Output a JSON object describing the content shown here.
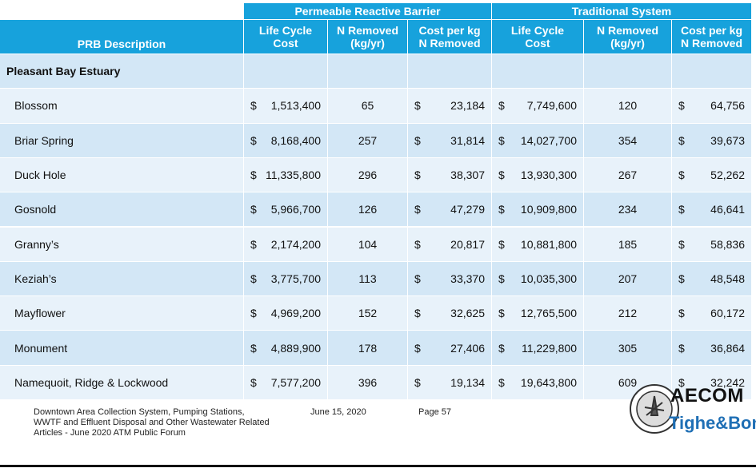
{
  "table": {
    "group_headers": [
      "Permeable Reactive Barrier",
      "Traditional System"
    ],
    "columns": [
      "PRB Description",
      "Life Cycle\nCost",
      "N Removed\n(kg/yr)",
      "Cost per kg\nN Removed",
      "Life Cycle\nCost",
      "N Removed\n(kg/yr)",
      "Cost per kg\nN Removed"
    ],
    "currency": "$",
    "section": "Pleasant Bay Estuary",
    "rows": [
      [
        "Blossom",
        "1,513,400",
        "65",
        "23,184",
        "7,749,600",
        "120",
        "64,756"
      ],
      [
        "Briar Spring",
        "8,168,400",
        "257",
        "31,814",
        "14,027,700",
        "354",
        "39,673"
      ],
      [
        "Duck Hole",
        "11,335,800",
        "296",
        "38,307",
        "13,930,300",
        "267",
        "52,262"
      ],
      [
        "Gosnold",
        "5,966,700",
        "126",
        "47,279",
        "10,909,800",
        "234",
        "46,641"
      ],
      [
        "Granny’s",
        "2,174,200",
        "104",
        "20,817",
        "10,881,800",
        "185",
        "58,836"
      ],
      [
        "Keziah’s",
        "3,775,700",
        "113",
        "33,370",
        "10,035,300",
        "207",
        "48,548"
      ],
      [
        "Mayflower",
        "4,969,200",
        "152",
        "32,625",
        "12,765,500",
        "212",
        "60,172"
      ],
      [
        "Monument",
        "4,889,900",
        "178",
        "27,406",
        "11,229,800",
        "305",
        "36,864"
      ],
      [
        "Namequoit, Ridge & Lockwood",
        "7,577,200",
        "396",
        "19,134",
        "19,643,800",
        "609",
        "32,242"
      ]
    ]
  },
  "footer": {
    "description": "Downtown Area Collection System, Pumping Stations, WWTF and Effluent Disposal and Other Wastewater Related Articles - June 2020 ATM Public Forum",
    "date": "June 15, 2020",
    "page": "Page 57",
    "logo_primary": "AECOM",
    "logo_secondary": "Tighe&Bond"
  }
}
